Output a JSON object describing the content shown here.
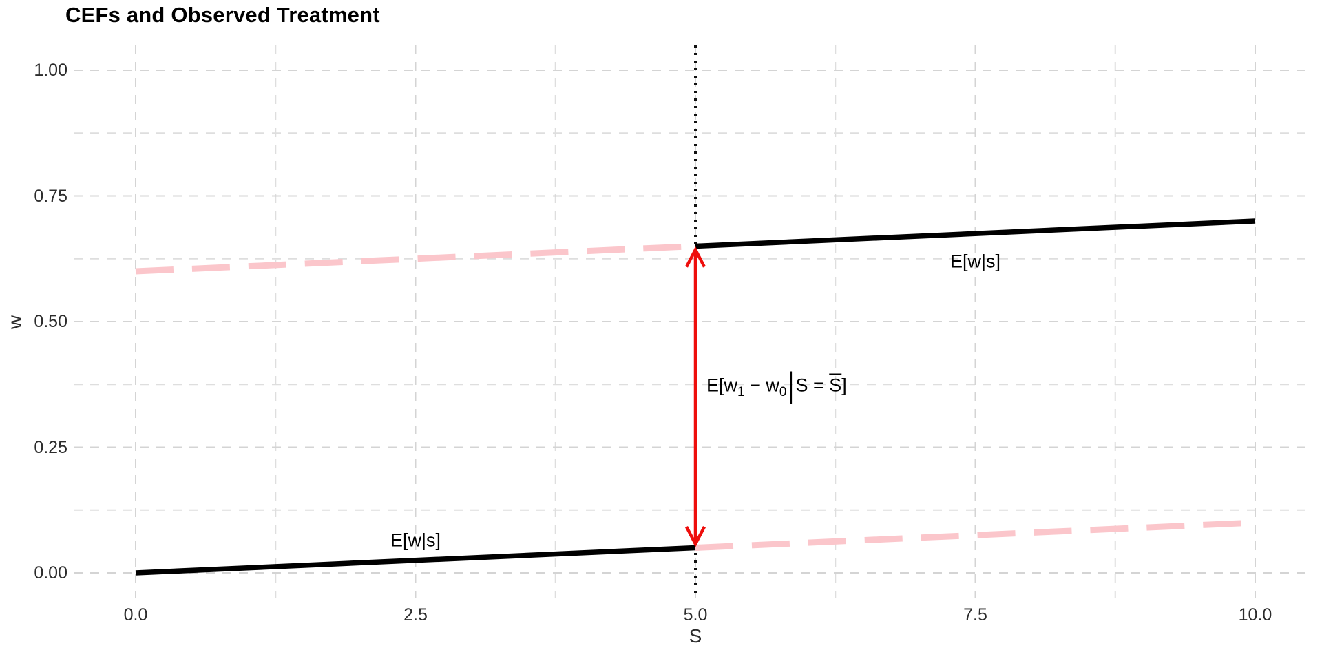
{
  "title": "CEFs and Observed Treatment",
  "colors": {
    "observed_line": "#000000",
    "counterfactual_line": "#FBC6CB",
    "effect_arrow": "#EE0E0C",
    "grid_major": "#D4D4D4",
    "grid_minor": "#DEDEDE",
    "cutoff_line": "#111111",
    "axis_text": "#2c2c2c"
  },
  "chart_data": {
    "type": "line",
    "title": "CEFs and Observed Treatment",
    "xlabel": "S",
    "ylabel": "w",
    "xlim": [
      0,
      10
    ],
    "ylim": [
      0,
      1
    ],
    "grid": "dashed, major and minor, both axes, no panel border, no tick marks",
    "legend": "none",
    "x_ticks": {
      "values": [
        0,
        2.5,
        5,
        7.5,
        10
      ],
      "labels": [
        "0.0",
        "2.5",
        "5.0",
        "7.5",
        "10.0"
      ]
    },
    "y_ticks": {
      "values": [
        0,
        0.25,
        0.5,
        0.75,
        1.0
      ],
      "labels": [
        "0.00",
        "0.25",
        "0.50",
        "0.75",
        "1.00"
      ]
    },
    "x_minor": [
      1.25,
      3.75,
      6.25,
      8.75
    ],
    "y_minor": [
      0.125,
      0.375,
      0.625,
      0.875
    ],
    "cutoff": 5,
    "series": [
      {
        "name": "observed-cef-below-cutoff",
        "style": "solid",
        "color": "#000000",
        "width": 7.5,
        "x": [
          0,
          5
        ],
        "y": [
          0.0,
          0.05
        ]
      },
      {
        "name": "observed-cef-above-cutoff",
        "style": "solid",
        "color": "#000000",
        "width": 7.5,
        "x": [
          5,
          10
        ],
        "y": [
          0.65,
          0.7
        ]
      },
      {
        "name": "counterfactual-treated-left",
        "style": "dashed",
        "color": "#FBC6CB",
        "width": 9,
        "x": [
          0,
          5
        ],
        "y": [
          0.6,
          0.65
        ]
      },
      {
        "name": "counterfactual-untreated-right",
        "style": "dashed",
        "color": "#FBC6CB",
        "width": 9,
        "x": [
          5,
          10
        ],
        "y": [
          0.05,
          0.1
        ]
      }
    ],
    "vline": {
      "x": 5,
      "style": "dotted",
      "color": "#111111",
      "width": 4
    },
    "arrow": {
      "x": 5,
      "y1": 0.0575,
      "y2": 0.643,
      "color": "#EE0E0C",
      "width": 4.5,
      "double_headed": true,
      "label_plain": "E[w1 - w0 | S = Sbar]",
      "label_y": 0.373
    },
    "annotations": [
      {
        "id": "cef-label-lower",
        "text": "E[w|s]",
        "x": 2.5,
        "y": 0.064
      },
      {
        "id": "cef-label-upper",
        "text": "E[w|s]",
        "x": 7.5,
        "y": 0.619
      }
    ],
    "effect_label": {
      "open": "E[w",
      "sub_treated": "1",
      "minus": " − w",
      "sub_untreated": "0",
      "bar": "|",
      "condition": "S = ",
      "s_bar": "S",
      "close": "]"
    }
  }
}
